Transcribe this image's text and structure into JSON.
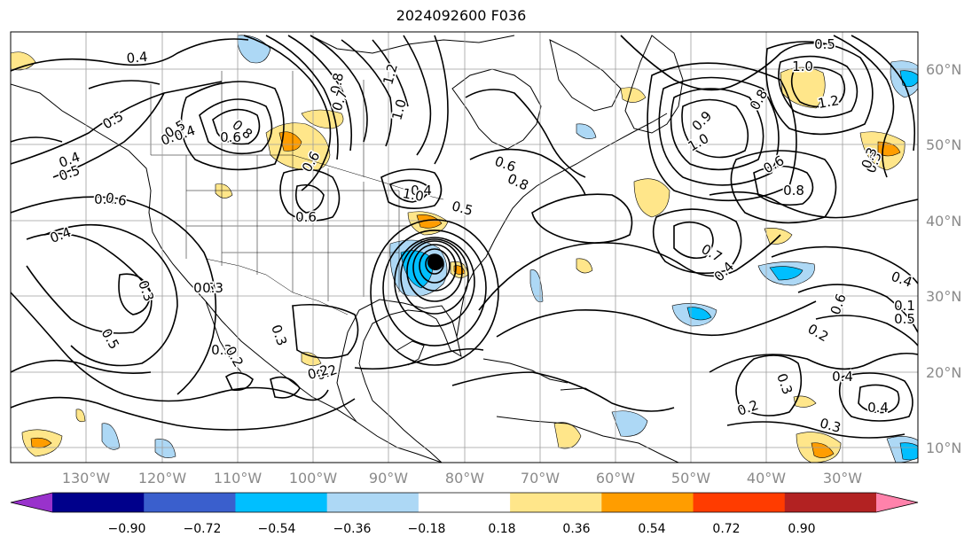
{
  "title": "2024092600 F036",
  "longitude_labels": [
    "130°W",
    "120°W",
    "110°W",
    "100°W",
    "90°W",
    "80°W",
    "70°W",
    "60°W",
    "50°W",
    "40°W",
    "30°W"
  ],
  "latitude_labels": [
    "60°N",
    "50°N",
    "40°N",
    "30°N",
    "20°N",
    "10°N"
  ],
  "contour_labels": [
    "0.4",
    "0.5",
    "0.6",
    "0.4",
    "0.6",
    "0.5",
    "0.6",
    "0.5",
    "0.3",
    "0.3",
    "0.5",
    "0.2",
    "0.2",
    "0.3",
    "0.5",
    "0.8",
    "0.6",
    "0.4",
    "1.2",
    "1.0",
    "0.8",
    "0.7",
    "0.6",
    "0.4",
    "0.6",
    "0.4",
    "0.3",
    "0.2",
    "0.6",
    "1.0",
    "0.5",
    "0.8",
    "1.0",
    "0.9",
    "0.6",
    "0.8",
    "0.7",
    "0.4",
    "0.3",
    "1.0",
    "1.2",
    "0.8",
    "0.3",
    "0.6",
    "0.4",
    "0.5",
    "0.1",
    "0.2",
    "0.3",
    "0.4",
    "0.3",
    "0.2",
    "0.4",
    "0.5"
  ],
  "colorbar": {
    "ticks": [
      "−0.90",
      "−0.72",
      "−0.54",
      "−0.36",
      "−0.18",
      "0.18",
      "0.36",
      "0.54",
      "0.72",
      "0.90"
    ],
    "colors": [
      "#9932cc",
      "#00008b",
      "#3a5fcd",
      "#00bfff",
      "#add8f5",
      "#ffffff",
      "#ffe68a",
      "#ff9d00",
      "#ff3c00",
      "#b22222",
      "#ff82ab"
    ]
  },
  "map_colors": {
    "land_line": "#000000",
    "grid": "#9e9e9e"
  }
}
